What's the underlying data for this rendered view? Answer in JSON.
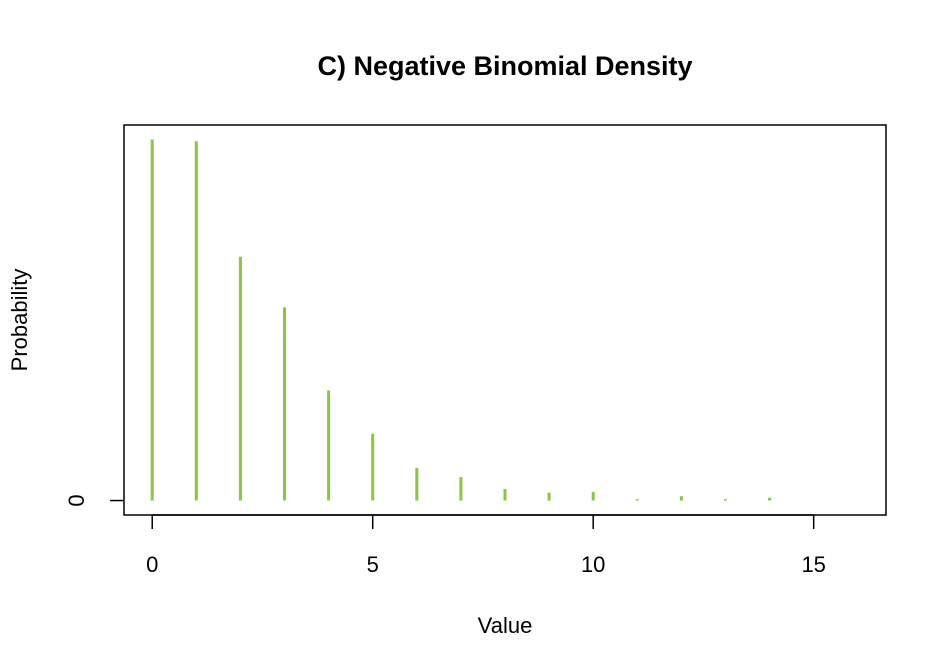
{
  "chart_data": {
    "type": "bar",
    "title": "C) Negative Binomial Density",
    "xlabel": "Value",
    "ylabel": "Probability",
    "x": [
      0,
      1,
      2,
      3,
      4,
      5,
      6,
      7,
      8,
      9,
      10,
      11,
      12,
      13,
      14
    ],
    "values": [
      0.2,
      0.199,
      0.135,
      0.107,
      0.061,
      0.037,
      0.018,
      0.013,
      0.0064,
      0.0044,
      0.0047,
      0.0008,
      0.0024,
      0.0008,
      0.0016
    ],
    "xlim": [
      -0.64,
      16.64
    ],
    "ylim": [
      -0.008,
      0.208
    ],
    "x_ticks": [
      0,
      5,
      10,
      15
    ],
    "y_ticks": [
      0
    ],
    "grid": false,
    "colors": {
      "bars": "#8cc63f",
      "axis": "#000000"
    }
  }
}
